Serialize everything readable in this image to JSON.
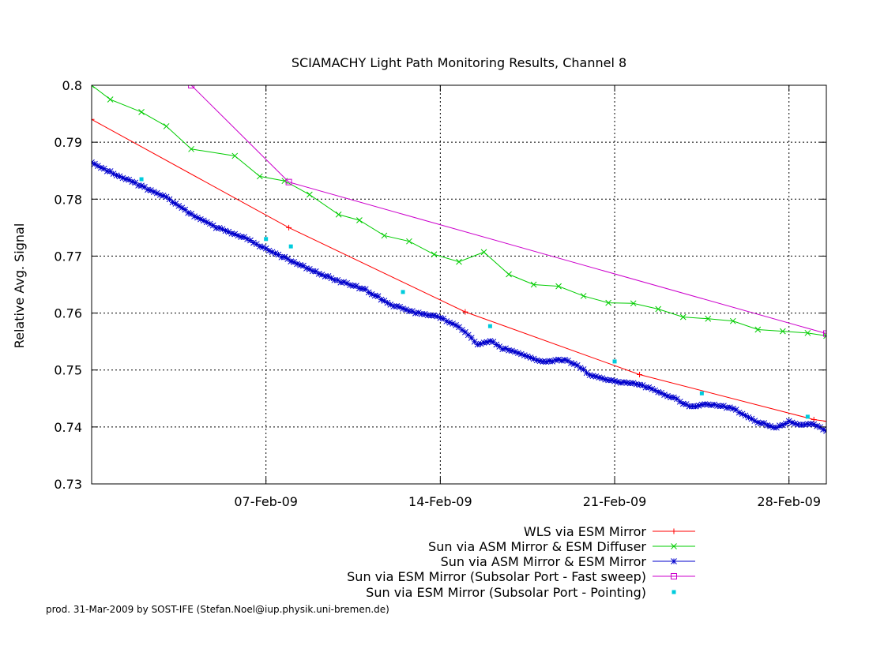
{
  "chart_data": {
    "type": "line",
    "title": "SCIAMACHY Light Path Monitoring Results, Channel 8",
    "xlabel": "",
    "ylabel": "Relative Avg. Signal",
    "xlim": [
      "2009-01-31T00:00",
      "2009-03-01T12:00"
    ],
    "ylim": [
      0.73,
      0.8
    ],
    "x_ticks": [
      {
        "date": "2009-02-07",
        "label": "07-Feb-09"
      },
      {
        "date": "2009-02-14",
        "label": "14-Feb-09"
      },
      {
        "date": "2009-02-21",
        "label": "21-Feb-09"
      },
      {
        "date": "2009-02-28",
        "label": "28-Feb-09"
      }
    ],
    "y_ticks": [
      {
        "value": 0.73,
        "label": "0.73"
      },
      {
        "value": 0.74,
        "label": "0.74"
      },
      {
        "value": 0.75,
        "label": "0.75"
      },
      {
        "value": 0.76,
        "label": "0.76"
      },
      {
        "value": 0.77,
        "label": "0.77"
      },
      {
        "value": 0.78,
        "label": "0.78"
      },
      {
        "value": 0.79,
        "label": "0.79"
      },
      {
        "value": 0.8,
        "label": "0.8"
      }
    ],
    "grid": true,
    "legend_position": "bottom-right",
    "series": [
      {
        "name": "WLS via ESM Mirror",
        "color": "#ff0000",
        "style": "line-marker",
        "marker": "plus",
        "x": [
          "2009-01-31T00:00",
          "2009-02-07T22:00",
          "2009-02-15T00:00",
          "2009-02-22T00:00",
          "2009-03-01T00:00",
          "2009-03-01T12:00"
        ],
        "y": [
          0.794,
          0.775,
          0.7602,
          0.7492,
          0.7413,
          0.741
        ]
      },
      {
        "name": "Sun via ASM Mirror & ESM Diffuser",
        "color": "#00cc00",
        "style": "line-marker",
        "marker": "cross",
        "x": [
          "2009-01-31T00:00",
          "2009-01-31T18:00",
          "2009-02-02T00:00",
          "2009-02-03T00:00",
          "2009-02-04T00:00",
          "2009-02-05T18:00",
          "2009-02-06T18:00",
          "2009-02-07T18:00",
          "2009-02-08T18:00",
          "2009-02-09T22:00",
          "2009-02-10T18:00",
          "2009-02-11T18:00",
          "2009-02-12T18:00",
          "2009-02-13T18:00",
          "2009-02-14T18:00",
          "2009-02-15T18:00",
          "2009-02-16T18:00",
          "2009-02-17T18:00",
          "2009-02-18T18:00",
          "2009-02-19T18:00",
          "2009-02-20T18:00",
          "2009-02-21T18:00",
          "2009-02-22T18:00",
          "2009-02-23T18:00",
          "2009-02-24T18:00",
          "2009-02-25T18:00",
          "2009-02-26T18:00",
          "2009-02-27T18:00",
          "2009-02-28T18:00",
          "2009-03-01T12:00"
        ],
        "y": [
          0.8,
          0.7975,
          0.7953,
          0.7928,
          0.7888,
          0.7876,
          0.784,
          0.7832,
          0.7808,
          0.7773,
          0.7763,
          0.7736,
          0.7726,
          0.7703,
          0.769,
          0.7707,
          0.7668,
          0.765,
          0.7647,
          0.763,
          0.7618,
          0.7617,
          0.7607,
          0.7593,
          0.759,
          0.7586,
          0.7571,
          0.7568,
          0.7565,
          0.756
        ]
      },
      {
        "name": "Sun via ASM Mirror & ESM Mirror",
        "color": "#0000cc",
        "style": "dense-marker-line",
        "marker": "star",
        "x": [
          "2009-01-31T00:00",
          "2009-02-01T00:00",
          "2009-02-02T00:00",
          "2009-02-03T00:00",
          "2009-02-04T00:00",
          "2009-02-05T00:00",
          "2009-02-06T00:00",
          "2009-02-07T00:00",
          "2009-02-08T00:00",
          "2009-02-09T00:00",
          "2009-02-10T00:00",
          "2009-02-11T00:00",
          "2009-02-12T00:00",
          "2009-02-13T00:00",
          "2009-02-13T18:00",
          "2009-02-14T12:00",
          "2009-02-15T00:00",
          "2009-02-15T12:00",
          "2009-02-16T00:00",
          "2009-02-16T12:00",
          "2009-02-17T00:00",
          "2009-02-18T00:00",
          "2009-02-19T00:00",
          "2009-02-19T12:00",
          "2009-02-20T00:00",
          "2009-02-21T00:00",
          "2009-02-22T00:00",
          "2009-02-22T18:00",
          "2009-02-23T12:00",
          "2009-02-24T00:00",
          "2009-02-24T18:00",
          "2009-02-25T18:00",
          "2009-02-26T12:00",
          "2009-02-27T12:00",
          "2009-02-28T00:00",
          "2009-02-28T12:00",
          "2009-03-01T00:00",
          "2009-03-01T12:00"
        ],
        "y": [
          0.7863,
          0.7843,
          0.7823,
          0.7803,
          0.7773,
          0.775,
          0.7735,
          0.7712,
          0.7692,
          0.7672,
          0.7655,
          0.7641,
          0.7615,
          0.7601,
          0.7596,
          0.7582,
          0.7567,
          0.7545,
          0.7552,
          0.7538,
          0.7532,
          0.7515,
          0.7518,
          0.7508,
          0.7492,
          0.748,
          0.7475,
          0.7462,
          0.7449,
          0.7435,
          0.744,
          0.7433,
          0.7413,
          0.7398,
          0.741,
          0.7403,
          0.7406,
          0.7393
        ]
      },
      {
        "name": "Sun via ESM Mirror (Subsolar Port - Fast sweep)",
        "color": "#cc00cc",
        "style": "line-marker",
        "marker": "square",
        "x": [
          "2009-02-04T00:00",
          "2009-02-07T22:00",
          "2009-03-01T12:00"
        ],
        "y": [
          0.8,
          0.783,
          0.7564
        ]
      },
      {
        "name": "Sun via ESM Mirror (Subsolar Port - Pointing)",
        "color": "#00ccdd",
        "style": "points",
        "marker": "filled-square",
        "x": [
          "2009-02-02T00:00",
          "2009-02-07T00:00",
          "2009-02-08T00:00",
          "2009-02-12T12:00",
          "2009-02-16T00:00",
          "2009-02-21T00:00",
          "2009-02-24T12:00",
          "2009-02-28T18:00"
        ],
        "y": [
          0.7835,
          0.773,
          0.7717,
          0.7637,
          0.7577,
          0.7515,
          0.7459,
          0.7418
        ]
      }
    ]
  },
  "footer": {
    "credit": "prod. 31-Mar-2009 by SOST-IFE (Stefan.Noel@iup.physik.uni-bremen.de)"
  }
}
